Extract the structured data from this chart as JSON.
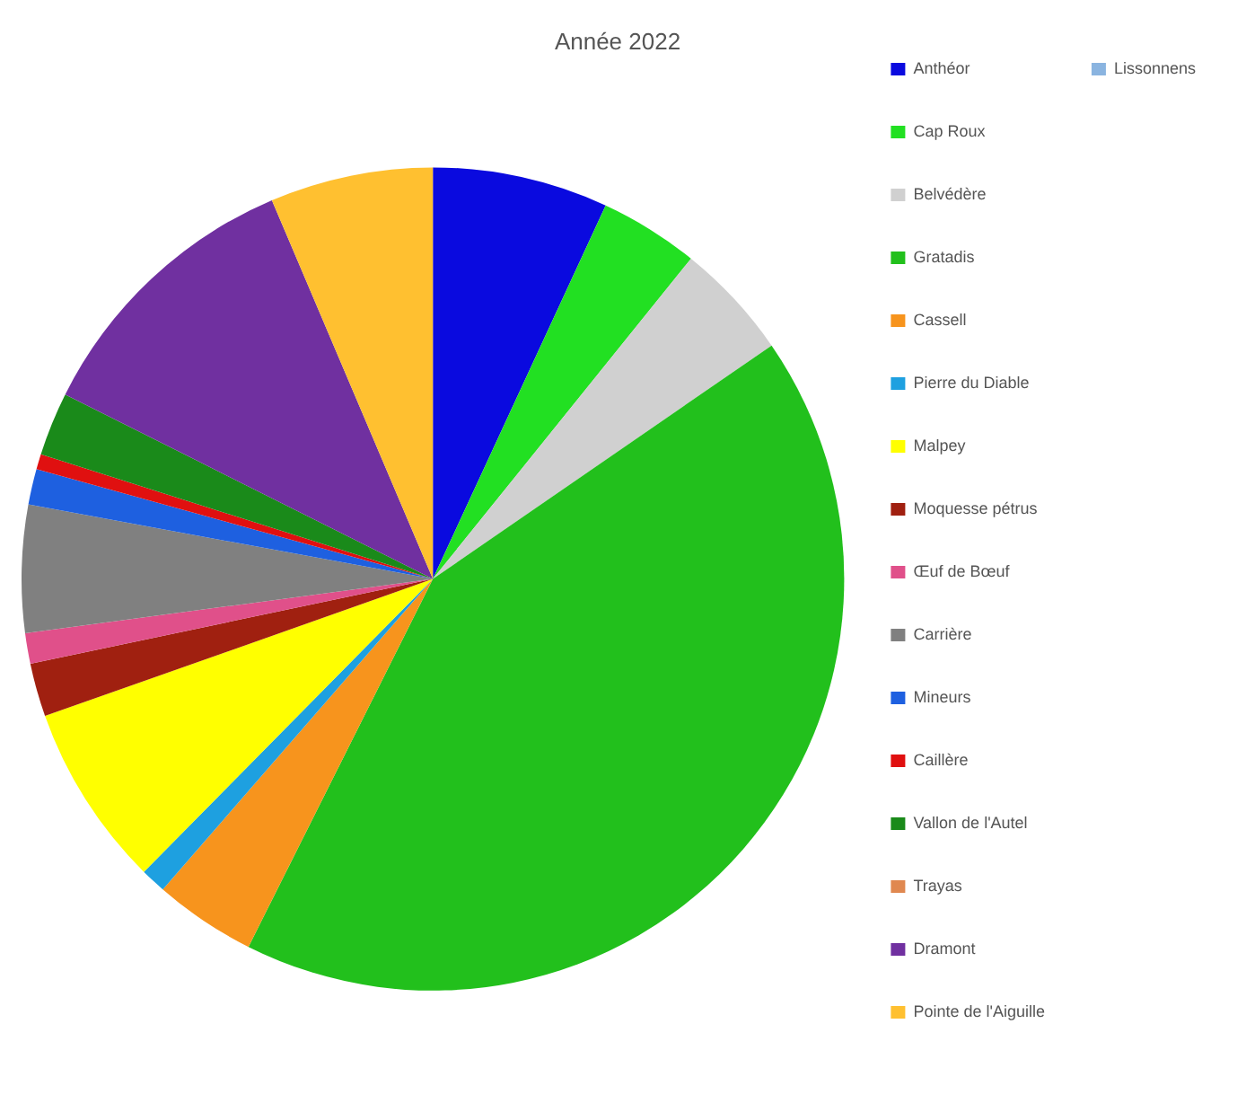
{
  "chart_data": {
    "type": "pie",
    "title": "Année 2022",
    "legend": "right",
    "categories": [
      "Anthéor",
      "Cap Roux",
      "Belvédère",
      "Gratadis",
      "Cassell",
      "Pierre du Diable",
      "Malpey",
      "Moquesse pétrus",
      "Œuf de Bœuf",
      "Carrière",
      "Mineurs",
      "Caillère",
      "Vallon de l'Autel",
      "Trayas",
      "Dramont",
      "Pointe de l'Aiguille",
      "Lissonnens"
    ],
    "values": [
      6.9,
      3.9,
      4.6,
      42,
      4,
      1,
      7.2,
      2.1,
      1.2,
      5,
      1.4,
      0.6,
      2.5,
      0,
      11.2,
      6.4,
      0
    ],
    "colors": [
      "#0a0adf",
      "#22e022",
      "#d0d0d0",
      "#22c01c",
      "#f7941d",
      "#1ea0e0",
      "#ffff00",
      "#a02010",
      "#e0508a",
      "#808080",
      "#1e60e0",
      "#e01010",
      "#1a8a1a",
      "#e08850",
      "#7030a0",
      "#ffc030",
      "#8ab4e0"
    ]
  }
}
